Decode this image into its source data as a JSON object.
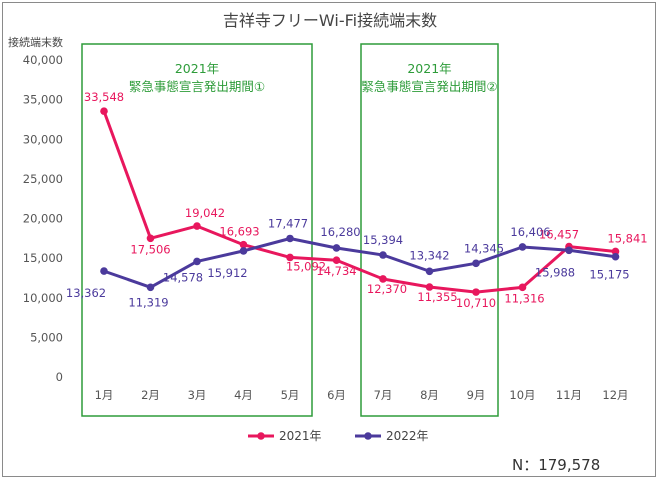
{
  "chart_data": {
    "type": "line",
    "title": "吉祥寺フリーWi-Fi接続端末数",
    "ylabel": "接続端末数",
    "ylim": [
      0,
      40000
    ],
    "yticks": [
      0,
      5000,
      10000,
      15000,
      20000,
      25000,
      30000,
      35000,
      40000
    ],
    "ytick_labels": [
      "0",
      "5,000",
      "10,000",
      "15,000",
      "20,000",
      "25,000",
      "30,000",
      "35,000",
      "40,000"
    ],
    "categories": [
      "1月",
      "2月",
      "3月",
      "4月",
      "5月",
      "6月",
      "7月",
      "8月",
      "9月",
      "10月",
      "11月",
      "12月"
    ],
    "series": [
      {
        "name": "2021年",
        "color": "#e8175d",
        "values": [
          33548,
          17506,
          19042,
          16693,
          15092,
          14734,
          12370,
          11355,
          10710,
          11316,
          16457,
          15841
        ],
        "labels": [
          "33,548",
          "17,506",
          "19,042",
          "16,693",
          "15,092",
          "14,734",
          "12,370",
          "11,355",
          "10,710",
          "11,316",
          "16,457",
          "15,841"
        ]
      },
      {
        "name": "2022年",
        "color": "#4b3a9c",
        "values": [
          13362,
          11319,
          14578,
          15912,
          17477,
          16280,
          15394,
          13342,
          14345,
          16406,
          15988,
          15175
        ],
        "labels": [
          "13,362",
          "11,319",
          "14,578",
          "15,912",
          "17,477",
          "16,280",
          "15,394",
          "13,342",
          "14,345",
          "16,406",
          "15,988",
          "15,175"
        ]
      }
    ],
    "annotations": [
      {
        "year": "2021年",
        "text": "緊急事態宣言発出期間①",
        "from_category": 0,
        "to_category": 4
      },
      {
        "year": "2021年",
        "text": "緊急事態宣言発出期間②",
        "from_category": 6,
        "to_category": 8
      }
    ],
    "legend": "bottom",
    "grid": false,
    "note": "N：179,578"
  },
  "colors": {
    "box": "#2e9c3a"
  }
}
